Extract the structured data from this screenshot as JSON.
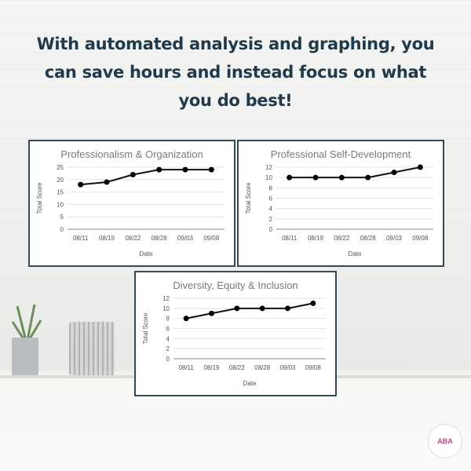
{
  "headline": {
    "lines": [
      "With automated analysis and graphing, you",
      "can save hours and instead focus on what",
      "you do best!"
    ],
    "color": "#1f3b4b"
  },
  "logo": {
    "text": "ABA"
  },
  "chart_data": [
    {
      "type": "line",
      "title": "Professionalism & Organization",
      "xlabel": "Date",
      "ylabel": "Total Score",
      "categories": [
        "08/11",
        "08/19",
        "08/22",
        "08/28",
        "09/03",
        "09/08"
      ],
      "values": [
        18,
        19,
        22,
        24,
        24,
        24
      ],
      "ylim": [
        0,
        25
      ],
      "yticks": [
        0,
        5,
        10,
        15,
        20,
        25
      ],
      "grid": true,
      "legend": "none"
    },
    {
      "type": "line",
      "title": "Professional Self-Development",
      "xlabel": "Date",
      "ylabel": "Total Score",
      "categories": [
        "08/11",
        "08/19",
        "08/22",
        "08/28",
        "09/03",
        "09/08"
      ],
      "values": [
        10,
        10,
        10,
        10,
        11,
        12
      ],
      "ylim": [
        0,
        12
      ],
      "yticks": [
        0,
        2,
        4,
        6,
        8,
        10,
        12
      ],
      "grid": true,
      "legend": "none"
    },
    {
      "type": "line",
      "title": "Diversity, Equity & Inclusion",
      "xlabel": "Date",
      "ylabel": "Total Score",
      "categories": [
        "08/11",
        "08/19",
        "08/22",
        "08/28",
        "09/03",
        "09/08"
      ],
      "values": [
        8,
        9,
        10,
        10,
        10,
        11
      ],
      "ylim": [
        0,
        12
      ],
      "yticks": [
        0,
        2,
        4,
        6,
        8,
        10,
        12
      ],
      "grid": true,
      "legend": "none"
    }
  ]
}
